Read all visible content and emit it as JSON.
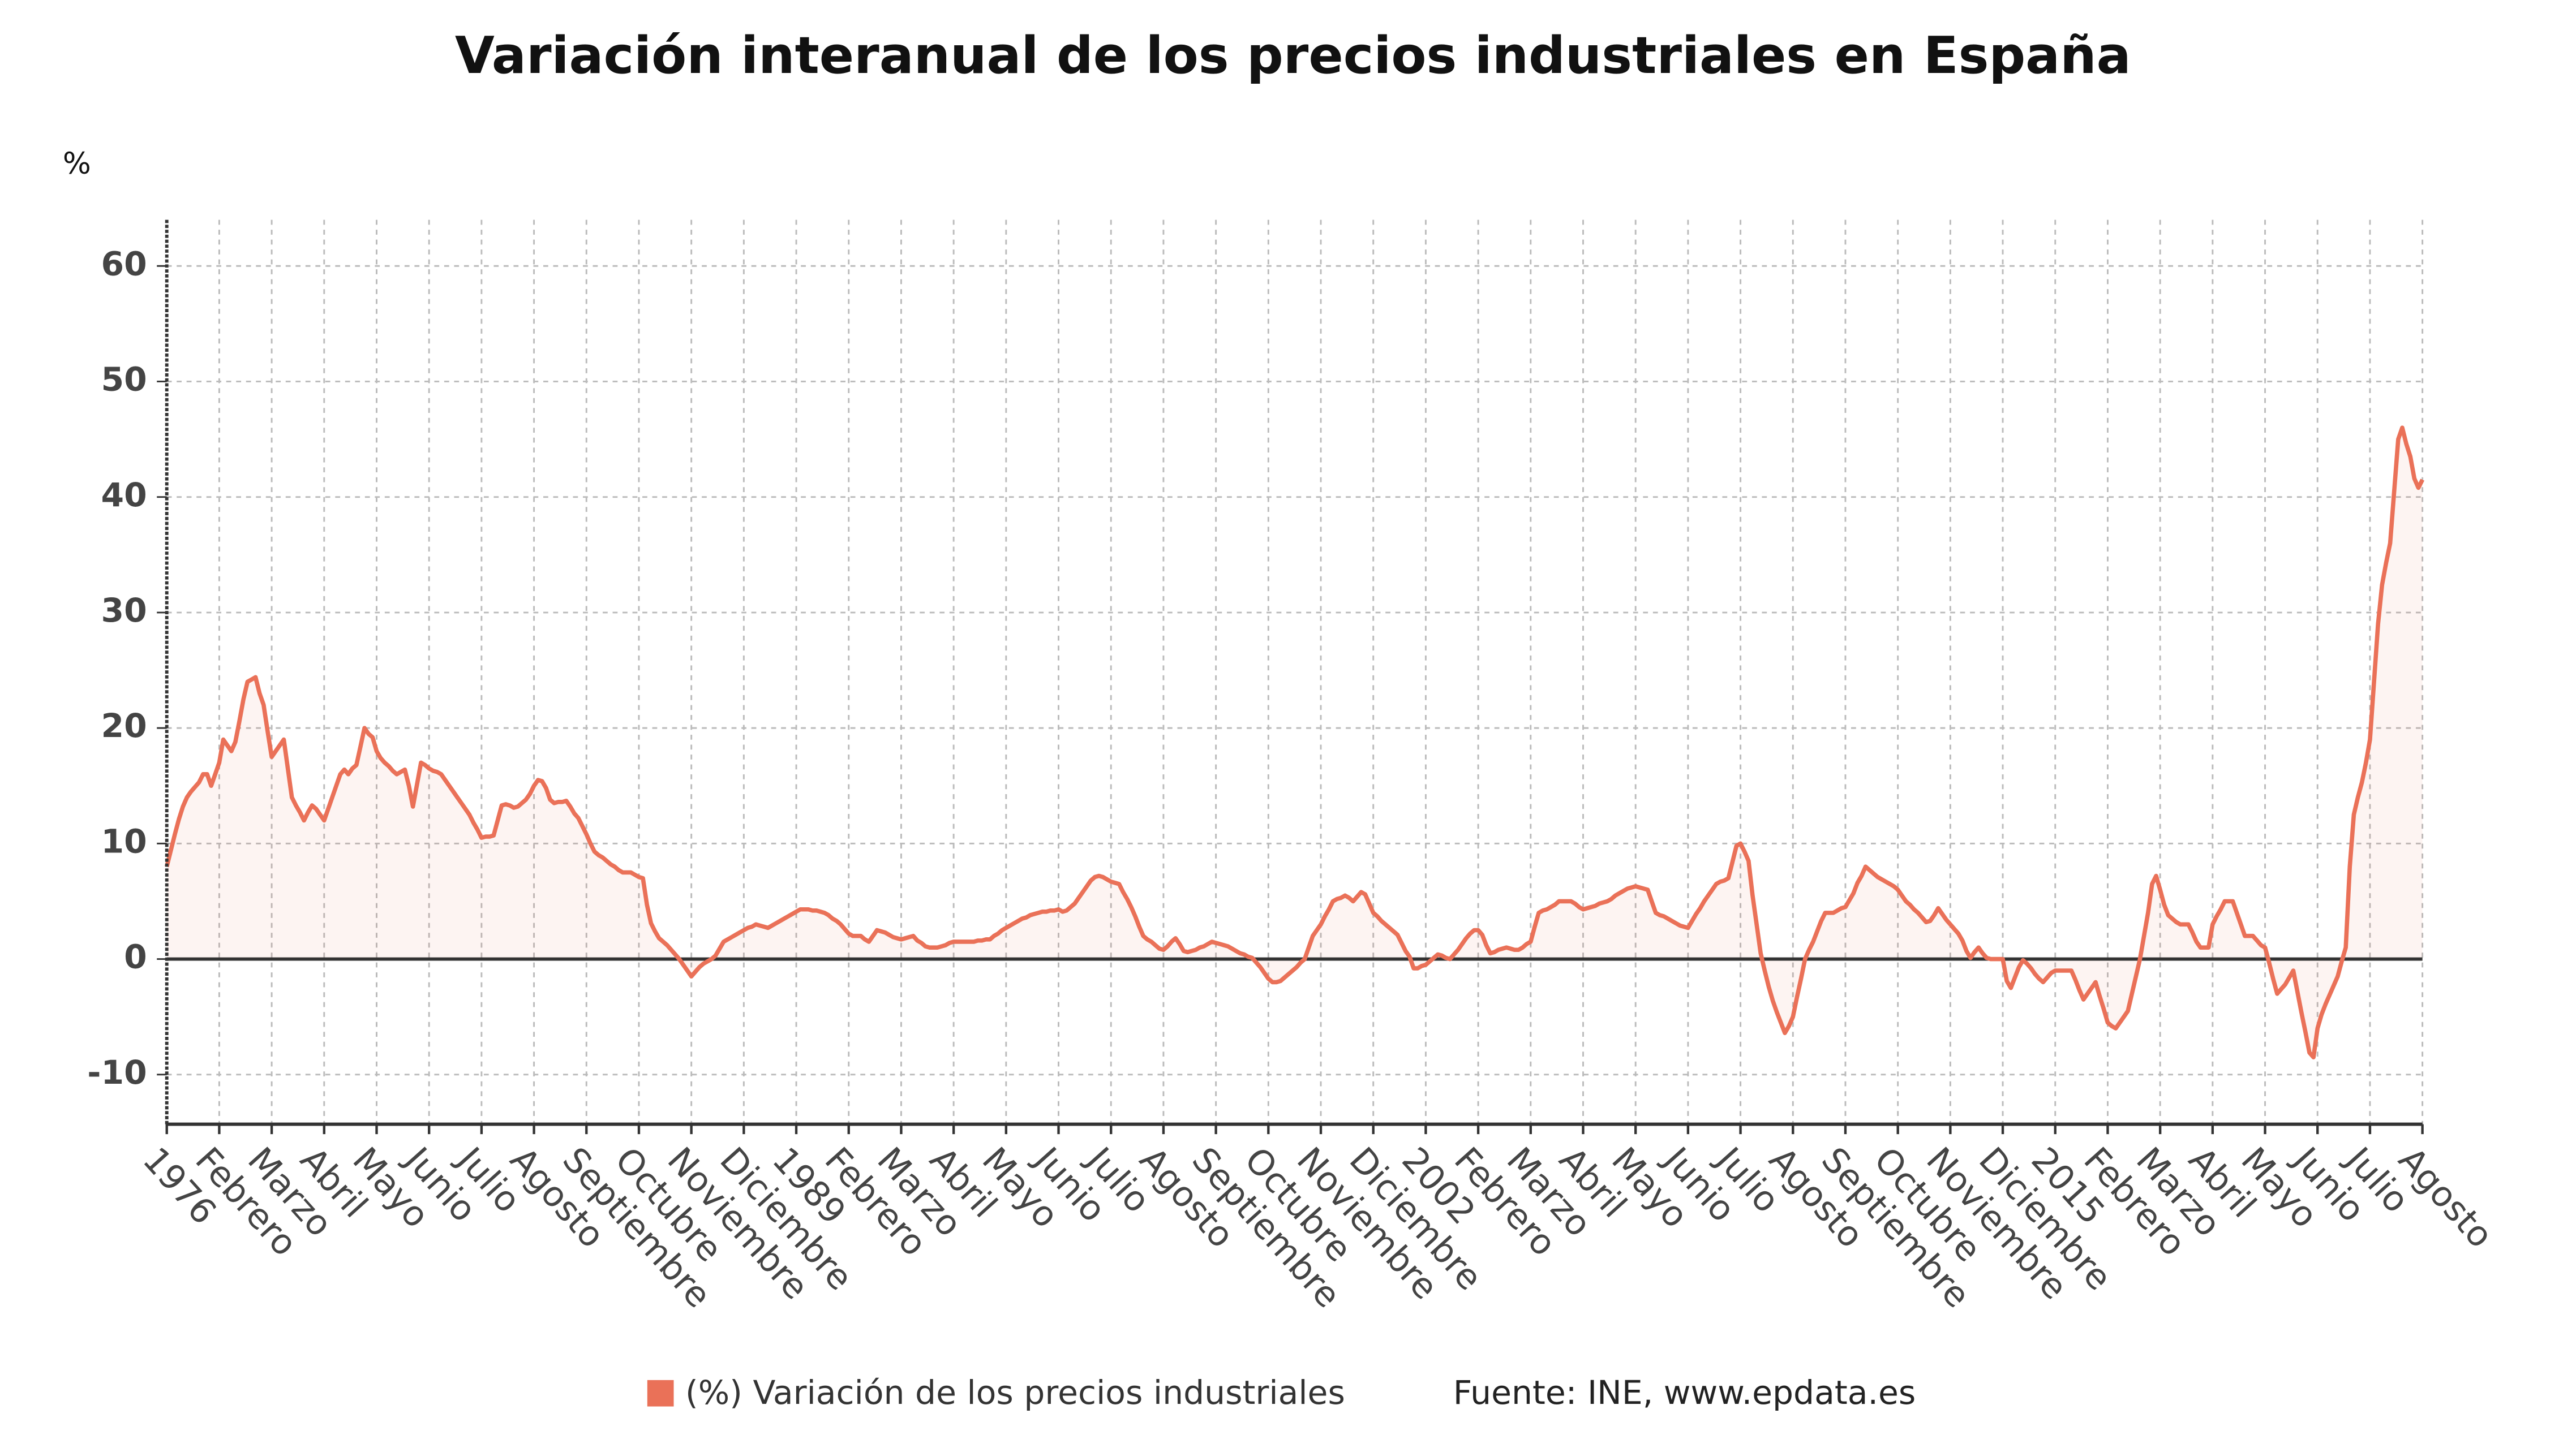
{
  "chart_data": {
    "type": "line",
    "title": "Variación interanual de los precios industriales en España",
    "y_unit": "%",
    "source": "Fuente: INE, www.epdata.es",
    "ylim": [
      -14.3,
      64
    ],
    "yticks": [
      -10,
      0,
      10,
      20,
      30,
      40,
      50,
      60
    ],
    "grid": true,
    "legend": "bottom",
    "categories": [
      "1976",
      null,
      null,
      null,
      null,
      null,
      null,
      null,
      null,
      null,
      null,
      null,
      null,
      "Febrero",
      null,
      null,
      null,
      null,
      null,
      null,
      null,
      null,
      null,
      null,
      null,
      null,
      "Marzo",
      null,
      null,
      null,
      null,
      null,
      null,
      null,
      null,
      null,
      null,
      null,
      null,
      "Abril",
      null,
      null,
      null,
      null,
      null,
      null,
      null,
      null,
      null,
      null,
      null,
      null,
      "Mayo",
      null,
      null,
      null,
      null,
      null,
      null,
      null,
      null,
      null,
      null,
      null,
      null,
      "Junio",
      null,
      null,
      null,
      null,
      null,
      null,
      null,
      null,
      null,
      null,
      null,
      null,
      "Julio",
      null,
      null,
      null,
      null,
      null,
      null,
      null,
      null,
      null,
      null,
      null,
      null,
      "Agosto",
      null,
      null,
      null,
      null,
      null,
      null,
      null,
      null,
      null,
      null,
      null,
      null,
      "Septiembre",
      null,
      null,
      null,
      null,
      null,
      null,
      null,
      null,
      null,
      null,
      null,
      null,
      "Octubre",
      null,
      null,
      null,
      null,
      null,
      null,
      null,
      null,
      null,
      null,
      null,
      null,
      "Noviembre",
      null,
      null,
      null,
      null,
      null,
      null,
      null,
      null,
      null,
      null,
      null,
      null,
      "Diciembre",
      null,
      null,
      null,
      null,
      null,
      null,
      null,
      null,
      null,
      null,
      null,
      null,
      "1989",
      null,
      null,
      null,
      null,
      null,
      null,
      null,
      null,
      null,
      null,
      null,
      null,
      "Febrero",
      null,
      null,
      null,
      null,
      null,
      null,
      null,
      null,
      null,
      null,
      null,
      null,
      "Marzo",
      null,
      null,
      null,
      null,
      null,
      null,
      null,
      null,
      null,
      null,
      null,
      null,
      "Abril",
      null,
      null,
      null,
      null,
      null,
      null,
      null,
      null,
      null,
      null,
      null,
      null,
      "Mayo",
      null,
      null,
      null,
      null,
      null,
      null,
      null,
      null,
      null,
      null,
      null,
      null,
      "Junio",
      null,
      null,
      null,
      null,
      null,
      null,
      null,
      null,
      null,
      null,
      null,
      null,
      "Julio",
      null,
      null,
      null,
      null,
      null,
      null,
      null,
      null,
      null,
      null,
      null,
      null,
      "Agosto",
      null,
      null,
      null,
      null,
      null,
      null,
      null,
      null,
      null,
      null,
      null,
      null,
      "Septiembre",
      null,
      null,
      null,
      null,
      null,
      null,
      null,
      null,
      null,
      null,
      null,
      null,
      "Octubre",
      null,
      null,
      null,
      null,
      null,
      null,
      null,
      null,
      null,
      null,
      null,
      null,
      "Noviembre",
      null,
      null,
      null,
      null,
      null,
      null,
      null,
      null,
      null,
      null,
      null,
      null,
      "Diciembre",
      null,
      null,
      null,
      null,
      null,
      null,
      null,
      null,
      null,
      null,
      null,
      null,
      "2002",
      null,
      null,
      null,
      null,
      null,
      null,
      null,
      null,
      null,
      null,
      null,
      null,
      "Febrero",
      null,
      null,
      null,
      null,
      null,
      null,
      null,
      null,
      null,
      null,
      null,
      null,
      "Marzo",
      null,
      null,
      null,
      null,
      null,
      null,
      null,
      null,
      null,
      null,
      null,
      null,
      "Abril",
      null,
      null,
      null,
      null,
      null,
      null,
      null,
      null,
      null,
      null,
      null,
      null,
      "Mayo",
      null,
      null,
      null,
      null,
      null,
      null,
      null,
      null,
      null,
      null,
      null,
      null,
      "Junio",
      null,
      null,
      null,
      null,
      null,
      null,
      null,
      null,
      null,
      null,
      null,
      null,
      "Julio",
      null,
      null,
      null,
      null,
      null,
      null,
      null,
      null,
      null,
      null,
      null,
      null,
      "Agosto",
      null,
      null,
      null,
      null,
      null,
      null,
      null,
      null,
      null,
      null,
      null,
      null,
      "Septiembre",
      null,
      null,
      null,
      null,
      null,
      null,
      null,
      null,
      null,
      null,
      null,
      null,
      "Octubre",
      null,
      null,
      null,
      null,
      null,
      null,
      null,
      null,
      null,
      null,
      null,
      null,
      "Noviembre",
      null,
      null,
      null,
      null,
      null,
      null,
      null,
      null,
      null,
      null,
      null,
      null,
      "Diciembre",
      null,
      null,
      null,
      null,
      null,
      null,
      null,
      null,
      null,
      null,
      null,
      null,
      "2015",
      null,
      null,
      null,
      null,
      null,
      null,
      null,
      null,
      null,
      null,
      null,
      null,
      "Febrero",
      null,
      null,
      null,
      null,
      null,
      null,
      null,
      null,
      null,
      null,
      null,
      null,
      "Marzo",
      null,
      null,
      null,
      null,
      null,
      null,
      null,
      null,
      null,
      null,
      null,
      null,
      "Abril",
      null,
      null,
      null,
      null,
      null,
      null,
      null,
      null,
      null,
      null,
      null,
      null,
      "Mayo",
      null,
      null,
      null,
      null,
      null,
      null,
      null,
      null,
      null,
      null,
      null,
      null,
      "Junio",
      null,
      null,
      null,
      null,
      null,
      null,
      null,
      null,
      null,
      null,
      null,
      null,
      "Julio",
      null,
      null,
      null,
      null,
      null,
      null,
      null,
      null,
      null,
      null,
      null,
      null,
      "Agosto"
    ],
    "series": [
      {
        "name": "(%) Variación de los precios industriales",
        "color": "#ea7158",
        "values": [
          8,
          9.4,
          10.8,
          12.1,
          13.2,
          14,
          14.5,
          14.9,
          15.3,
          16,
          16,
          15,
          16,
          17,
          19,
          18.5,
          18,
          18.8,
          20.6,
          22.5,
          24,
          24.2,
          24.4,
          23,
          22,
          19.7,
          17.5,
          18,
          18.5,
          19,
          16.5,
          14,
          13.3,
          12.7,
          12,
          12.7,
          13.3,
          13,
          12.5,
          12,
          13,
          14,
          15,
          16,
          16.4,
          16,
          16.5,
          16.8,
          18.4,
          20,
          19.5,
          19.2,
          18,
          17.4,
          17,
          16.7,
          16.3,
          16,
          16.2,
          16.4,
          15,
          13.2,
          15.1,
          17,
          16.8,
          16.5,
          16.3,
          16.2,
          16,
          15.5,
          15,
          14.5,
          14,
          13.5,
          13,
          12.5,
          11.8,
          11.2,
          10.5,
          10.6,
          10.6,
          10.7,
          12,
          13.3,
          13.4,
          13.3,
          13.1,
          13.2,
          13.5,
          13.8,
          14.3,
          15,
          15.5,
          15.4,
          14.8,
          13.8,
          13.5,
          13.6,
          13.6,
          13.7,
          13.2,
          12.6,
          12.2,
          11.5,
          10.8,
          10,
          9.3,
          9,
          8.8,
          8.5,
          8.2,
          8,
          7.7,
          7.5,
          7.5,
          7.5,
          7.3,
          7.1,
          7,
          4.7,
          3.1,
          2.4,
          1.8,
          1.5,
          1.2,
          0.8,
          0.4,
          0,
          -0.5,
          -1,
          -1.5,
          -1.1,
          -0.7,
          -0.4,
          -0.2,
          0,
          0.3,
          0.9,
          1.5,
          1.7,
          1.9,
          2.1,
          2.3,
          2.5,
          2.7,
          2.8,
          3,
          2.9,
          2.8,
          2.7,
          2.9,
          3.1,
          3.3,
          3.5,
          3.7,
          3.9,
          4.1,
          4.3,
          4.3,
          4.3,
          4.2,
          4.2,
          4.1,
          4,
          3.8,
          3.5,
          3.3,
          3,
          2.6,
          2.2,
          2,
          2,
          2,
          1.7,
          1.5,
          2,
          2.5,
          2.4,
          2.3,
          2.1,
          1.9,
          1.8,
          1.7,
          1.8,
          1.9,
          2,
          1.6,
          1.4,
          1.1,
          1,
          1,
          1,
          1.1,
          1.2,
          1.4,
          1.5,
          1.5,
          1.5,
          1.5,
          1.5,
          1.5,
          1.6,
          1.6,
          1.7,
          1.7,
          2,
          2.2,
          2.5,
          2.7,
          2.9,
          3.1,
          3.3,
          3.5,
          3.6,
          3.8,
          3.9,
          4,
          4.1,
          4.1,
          4.2,
          4.2,
          4.3,
          4.1,
          4.2,
          4.5,
          4.8,
          5.3,
          5.8,
          6.3,
          6.8,
          7.1,
          7.2,
          7.1,
          6.9,
          6.7,
          6.6,
          6.5,
          5.8,
          5.2,
          4.5,
          3.7,
          2.8,
          2,
          1.7,
          1.5,
          1.2,
          0.9,
          0.8,
          1.1,
          1.5,
          1.8,
          1.3,
          0.7,
          0.6,
          0.7,
          0.8,
          1,
          1.1,
          1.3,
          1.5,
          1.4,
          1.3,
          1.2,
          1.1,
          0.9,
          0.7,
          0.5,
          0.4,
          0.2,
          0.1,
          -0.3,
          -0.7,
          -1.2,
          -1.7,
          -2,
          -2,
          -1.9,
          -1.6,
          -1.3,
          -1,
          -0.7,
          -0.3,
          0,
          1,
          2,
          2.5,
          3,
          3.7,
          4.3,
          5,
          5.2,
          5.3,
          5.5,
          5.3,
          5,
          5.4,
          5.8,
          5.6,
          4.8,
          4,
          3.7,
          3.3,
          3,
          2.7,
          2.4,
          2.1,
          1.4,
          0.7,
          0.2,
          -0.8,
          -0.8,
          -0.6,
          -0.5,
          -0.2,
          0.1,
          0.4,
          0.3,
          0.1,
          0,
          0.4,
          0.8,
          1.3,
          1.8,
          2.2,
          2.5,
          2.5,
          2.1,
          1.2,
          0.5,
          0.6,
          0.8,
          0.9,
          1,
          0.9,
          0.8,
          0.8,
          1,
          1.3,
          1.5,
          2.8,
          4,
          4.2,
          4.3,
          4.5,
          4.7,
          5,
          5,
          5,
          5,
          4.8,
          4.5,
          4.3,
          4.4,
          4.5,
          4.6,
          4.8,
          4.9,
          5,
          5.2,
          5.5,
          5.7,
          5.9,
          6.1,
          6.2,
          6.3,
          6.2,
          6.1,
          6,
          5,
          4,
          3.8,
          3.7,
          3.5,
          3.3,
          3.1,
          2.9,
          2.8,
          2.7,
          3.3,
          3.9,
          4.4,
          5,
          5.5,
          6,
          6.5,
          6.7,
          6.8,
          7,
          8.4,
          9.8,
          10,
          9.3,
          8.5,
          5.5,
          3,
          0.5,
          -1,
          -2.4,
          -3.6,
          -4.6,
          -5.5,
          -6.4,
          -5.8,
          -5,
          -3.3,
          -1.7,
          0,
          0.8,
          1.5,
          2.4,
          3.3,
          4,
          4,
          4,
          4.2,
          4.4,
          4.5,
          5.1,
          5.7,
          6.6,
          7.2,
          8,
          7.7,
          7.4,
          7.1,
          6.9,
          6.7,
          6.5,
          6.3,
          6,
          5.5,
          5,
          4.7,
          4.3,
          4,
          3.6,
          3.2,
          3.3,
          3.8,
          4.4,
          3.9,
          3.4,
          3,
          2.6,
          2.2,
          1.6,
          0.7,
          0.1,
          0.6,
          1,
          0.5,
          0.1,
          0,
          0,
          0,
          0,
          -1.9,
          -2.5,
          -1.6,
          -0.7,
          -0.1,
          -0.4,
          -0.8,
          -1.3,
          -1.7,
          -2,
          -1.6,
          -1.2,
          -1,
          -1,
          -1,
          -1,
          -1,
          -1.8,
          -2.7,
          -3.5,
          -3,
          -2.5,
          -2,
          -3.2,
          -4.3,
          -5.5,
          -5.8,
          -6,
          -5.5,
          -5,
          -4.5,
          -3,
          -1.5,
          0,
          2,
          4,
          6.5,
          7.2,
          6,
          4.7,
          3.8,
          3.5,
          3.2,
          3,
          3,
          3,
          2.3,
          1.5,
          1,
          1,
          1,
          3,
          3.7,
          4.3,
          5,
          5,
          5,
          4,
          3,
          2,
          2,
          2,
          1.6,
          1.2,
          1,
          -0.3,
          -1.7,
          -3,
          -2.6,
          -2.2,
          -1.6,
          -1,
          -2.8,
          -4.6,
          -6.3,
          -8.1,
          -8.5,
          -6,
          -4.8,
          -3.9,
          -3.1,
          -2.3,
          -1.5,
          -0.2,
          1,
          8,
          12.5,
          14,
          15.3,
          17,
          19,
          24,
          29,
          32.4,
          34.3,
          36,
          40.5,
          45,
          46,
          44.6,
          43.5,
          41.6,
          40.8,
          41.5
        ]
      }
    ]
  }
}
